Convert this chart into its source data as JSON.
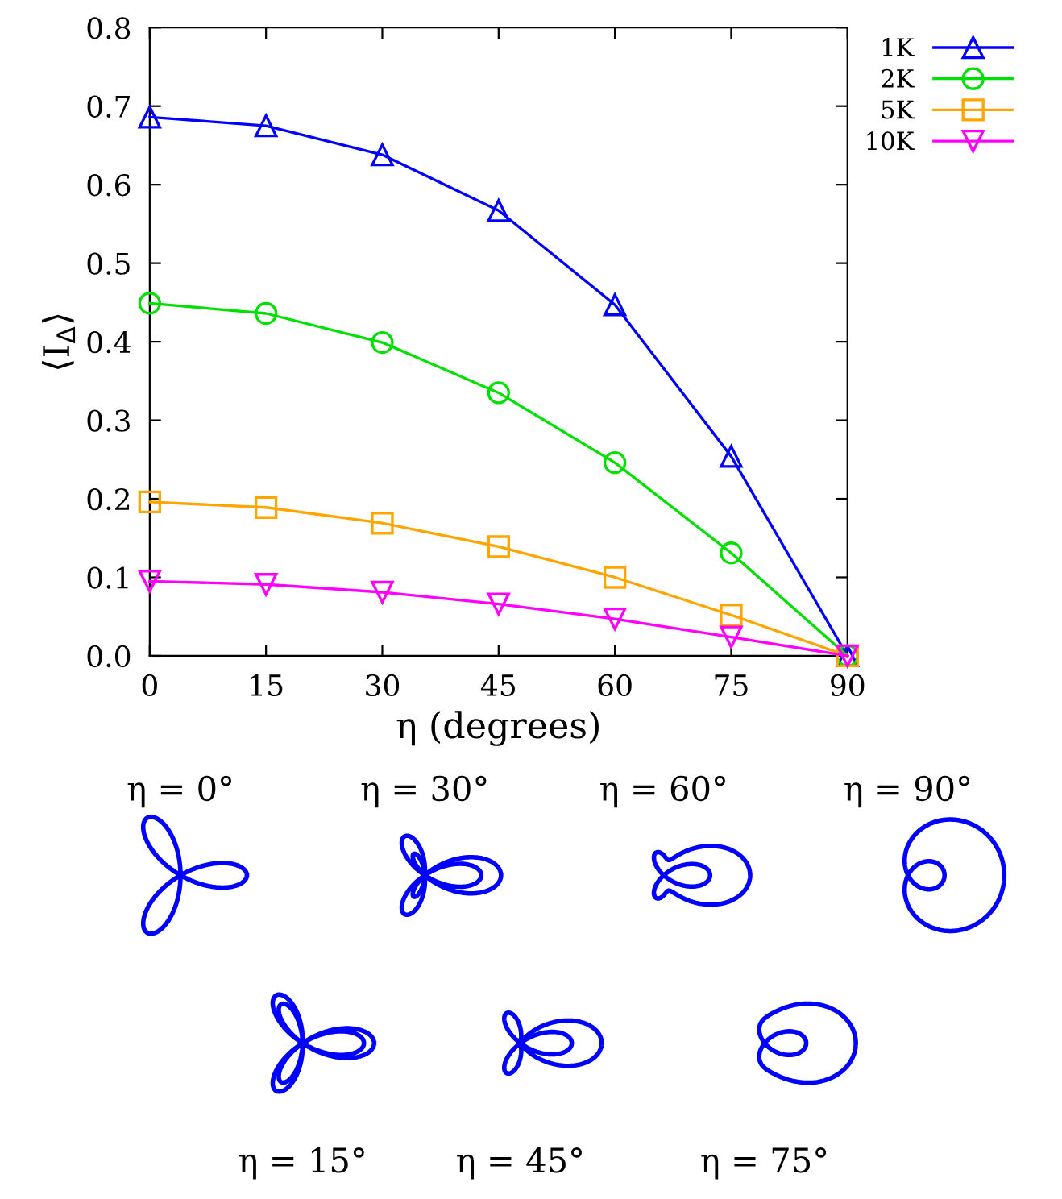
{
  "chart_data": {
    "type": "line",
    "xlabel": "η (degrees)",
    "ylabel": "⟨I$_{Δ}$⟩",
    "x": [
      0,
      15,
      30,
      45,
      60,
      75,
      90
    ],
    "xlim": [
      0,
      90
    ],
    "xticks": [
      0,
      15,
      30,
      45,
      60,
      75,
      90
    ],
    "ylim": [
      0,
      0.8
    ],
    "yticks": [
      {
        "value": 0,
        "label": "0.0"
      },
      0.1,
      0.2,
      0.3,
      0.4,
      0.5,
      0.6,
      0.7,
      0.8
    ],
    "grid": false,
    "legend": "top right",
    "series": [
      {
        "name": "1K",
        "color": "#0000ff",
        "marker": "triangle",
        "values": [
          0.686,
          0.675,
          0.638,
          0.567,
          0.447,
          0.254,
          0
        ]
      },
      {
        "name": "2K",
        "color": "#00e000",
        "marker": "circle",
        "values": [
          0.449,
          0.436,
          0.399,
          0.335,
          0.246,
          0.131,
          0
        ]
      },
      {
        "name": "5K",
        "color": "#ffa500",
        "marker": "square",
        "values": [
          0.196,
          0.189,
          0.169,
          0.139,
          0.1,
          0.052,
          0
        ]
      },
      {
        "name": "10K",
        "color": "#ff00ff",
        "marker": "triangle_down",
        "values": [
          0.095,
          0.091,
          0.081,
          0.066,
          0.047,
          0.024,
          0
        ]
      }
    ],
    "annotations": [
      "η = 0°",
      "η = 30°",
      "η = 60°",
      "η = 90°",
      "η = 15°",
      "η = 45°",
      "η = 75°"
    ]
  }
}
